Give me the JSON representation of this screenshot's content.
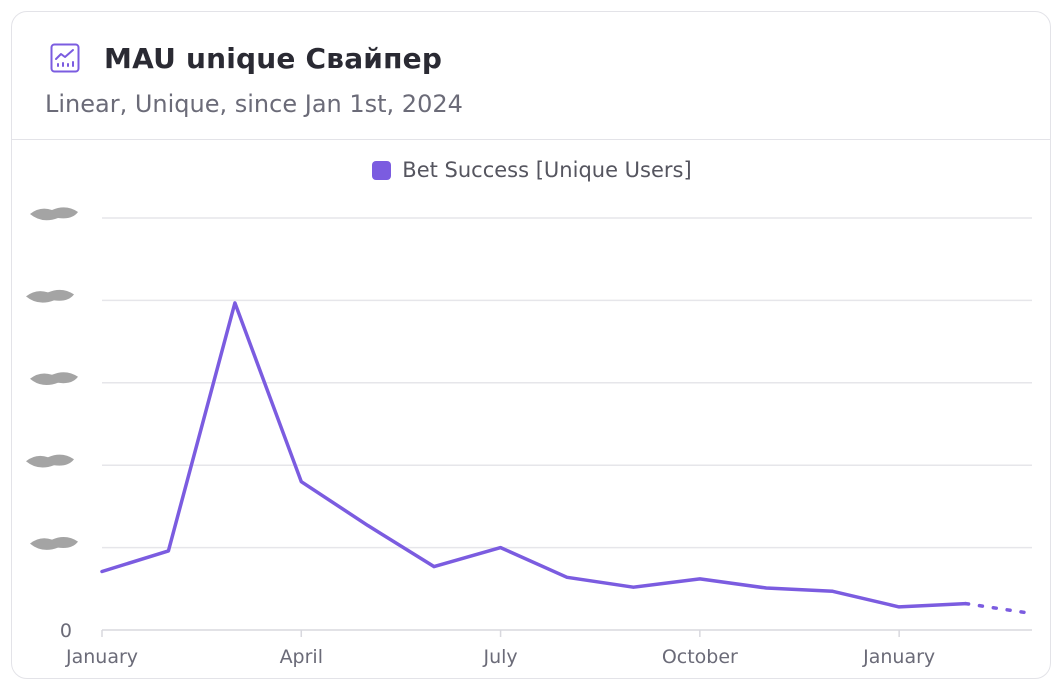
{
  "header": {
    "title": "MAU unique Свайпер",
    "subtitle": "Linear, Unique, since Jan 1st, 2024",
    "icon": "line-chart-icon"
  },
  "colors": {
    "accent": "#7b5ce0",
    "grid": "#e6e6ea",
    "redaction": "#9a9a9a"
  },
  "chart_data": {
    "type": "line",
    "legend": {
      "placement": "top-center"
    },
    "grid": true,
    "x_tick_labels": [
      "January",
      "April",
      "July",
      "October",
      "January"
    ],
    "y_tick_labels": [
      "",
      "",
      "",
      "",
      "",
      "0"
    ],
    "y_tick_labels_redacted": true,
    "ylim": [
      0,
      5
    ],
    "series": [
      {
        "name": "Bet Success [Unique Users]",
        "x": [
          "2024-01",
          "2024-02",
          "2024-03",
          "2024-04",
          "2024-05",
          "2024-06",
          "2024-07",
          "2024-08",
          "2024-09",
          "2024-10",
          "2024-11",
          "2024-12",
          "2025-01",
          "2025-02",
          "2025-03"
        ],
        "values": [
          0.71,
          0.96,
          3.97,
          1.8,
          1.27,
          0.77,
          1.0,
          0.64,
          0.52,
          0.62,
          0.51,
          0.47,
          0.28,
          0.32,
          0.2
        ],
        "last_point_incomplete": true
      }
    ]
  }
}
